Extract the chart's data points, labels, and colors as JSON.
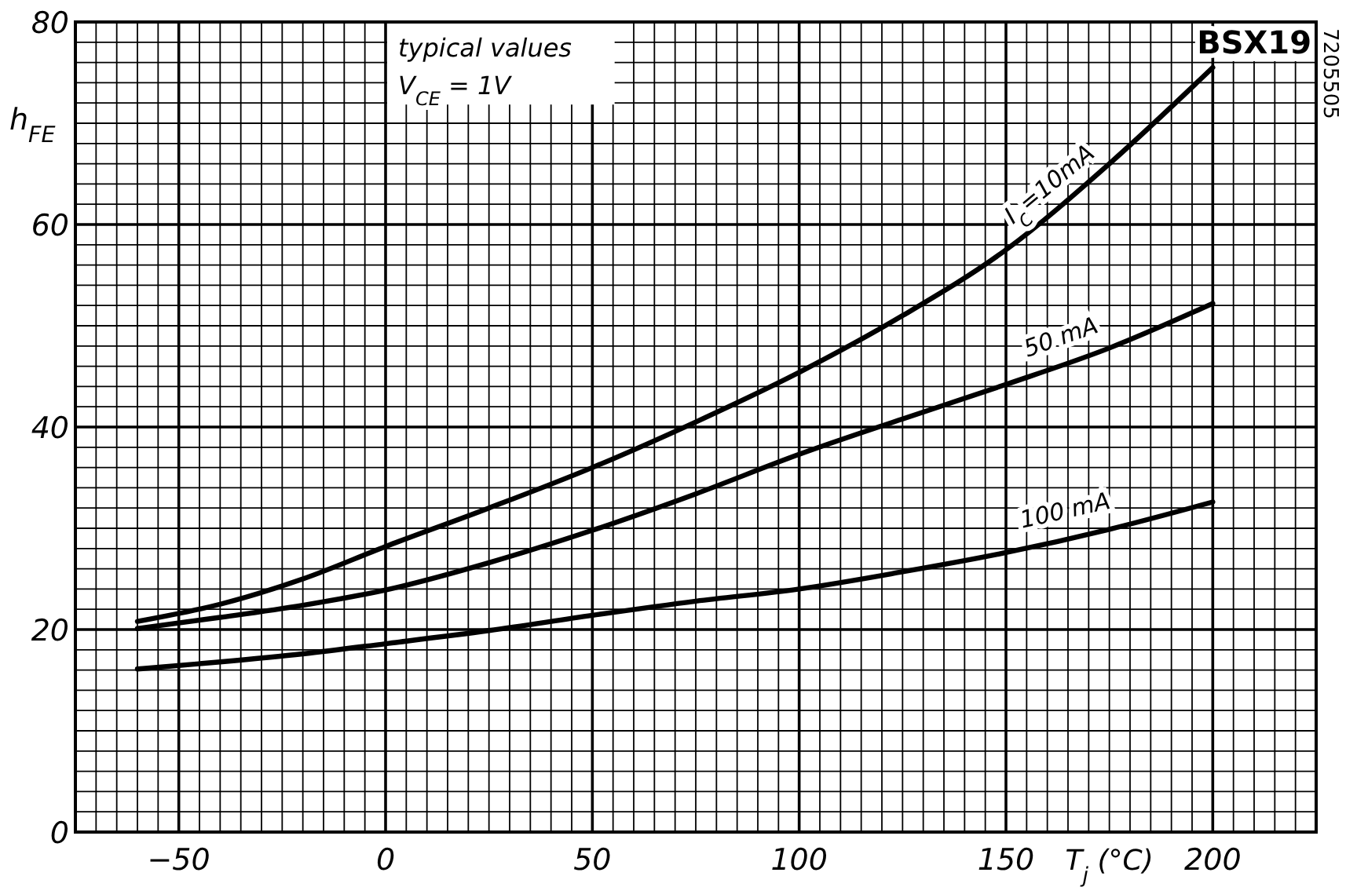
{
  "chart_data": {
    "type": "line",
    "title": "BSX19",
    "xlabel": "T$_{j}$ (°C)",
    "ylabel": "h$_{FE}$",
    "annotations": [
      "typical values",
      "V$_{CE}$ = 1V",
      "7205505"
    ],
    "x": [
      -60,
      -40,
      -20,
      0,
      25,
      50,
      75,
      100,
      125,
      150,
      175,
      200
    ],
    "series": [
      {
        "name": "I$_{C}$=10mA",
        "color": "#000000",
        "values": [
          20.8,
          22.5,
          25,
          28.2,
          32,
          36,
          40.5,
          45.4,
          51,
          57.5,
          66,
          75.5
        ]
      },
      {
        "name": "50 mA",
        "color": "#000000",
        "values": [
          20.1,
          21.2,
          22.4,
          23.9,
          26.6,
          29.8,
          33.4,
          37.3,
          40.8,
          44.2,
          47.8,
          52.2
        ]
      },
      {
        "name": "100 mA",
        "color": "#000000",
        "values": [
          16.1,
          16.8,
          17.6,
          18.6,
          19.9,
          21.4,
          22.8,
          24.0,
          25.7,
          27.6,
          29.9,
          32.6
        ]
      }
    ],
    "xlim": [
      -75,
      225
    ],
    "ylim": [
      0,
      80
    ],
    "xticks": [
      {
        "value": -75,
        "label": null
      },
      {
        "value": -70,
        "label": null
      },
      {
        "value": -65,
        "label": null
      },
      {
        "value": -60,
        "label": null
      },
      {
        "value": -55,
        "label": null
      },
      {
        "value": -50,
        "label": "−50"
      },
      {
        "value": -45,
        "label": null
      },
      {
        "value": -40,
        "label": null
      },
      {
        "value": -35,
        "label": null
      },
      {
        "value": -30,
        "label": null
      },
      {
        "value": -25,
        "label": null
      },
      {
        "value": -20,
        "label": null
      },
      {
        "value": -15,
        "label": null
      },
      {
        "value": -10,
        "label": null
      },
      {
        "value": -5,
        "label": null
      },
      0,
      {
        "value": 5,
        "label": null
      },
      {
        "value": 10,
        "label": null
      },
      {
        "value": 15,
        "label": null
      },
      {
        "value": 20,
        "label": null
      },
      {
        "value": 25,
        "label": null
      },
      {
        "value": 30,
        "label": null
      },
      {
        "value": 35,
        "label": null
      },
      {
        "value": 40,
        "label": null
      },
      {
        "value": 45,
        "label": null
      },
      50,
      {
        "value": 55,
        "label": null
      },
      {
        "value": 60,
        "label": null
      },
      {
        "value": 65,
        "label": null
      },
      {
        "value": 70,
        "label": null
      },
      {
        "value": 75,
        "label": null
      },
      {
        "value": 80,
        "label": null
      },
      {
        "value": 85,
        "label": null
      },
      {
        "value": 90,
        "label": null
      },
      {
        "value": 95,
        "label": null
      },
      100,
      {
        "value": 105,
        "label": null
      },
      {
        "value": 110,
        "label": null
      },
      {
        "value": 115,
        "label": null
      },
      {
        "value": 120,
        "label": null
      },
      {
        "value": 125,
        "label": null
      },
      {
        "value": 130,
        "label": null
      },
      {
        "value": 135,
        "label": null
      },
      {
        "value": 140,
        "label": null
      },
      {
        "value": 145,
        "label": null
      },
      150,
      {
        "value": 155,
        "label": null
      },
      {
        "value": 160,
        "label": null
      },
      {
        "value": 165,
        "label": null
      },
      {
        "value": 170,
        "label": null
      },
      {
        "value": 175,
        "label": null
      },
      {
        "value": 180,
        "label": null
      },
      {
        "value": 185,
        "label": null
      },
      {
        "value": 190,
        "label": null
      },
      {
        "value": 195,
        "label": null
      },
      200,
      {
        "value": 205,
        "label": null
      },
      {
        "value": 210,
        "label": null
      },
      {
        "value": 215,
        "label": null
      },
      {
        "value": 220,
        "label": null
      },
      {
        "value": 225,
        "label": null
      }
    ],
    "yticks": [
      0,
      {
        "value": 2,
        "label": null
      },
      {
        "value": 4,
        "label": null
      },
      {
        "value": 6,
        "label": null
      },
      {
        "value": 8,
        "label": null
      },
      {
        "value": 10,
        "label": null
      },
      {
        "value": 12,
        "label": null
      },
      {
        "value": 14,
        "label": null
      },
      {
        "value": 16,
        "label": null
      },
      {
        "value": 18,
        "label": null
      },
      20,
      {
        "value": 22,
        "label": null
      },
      {
        "value": 24,
        "label": null
      },
      {
        "value": 26,
        "label": null
      },
      {
        "value": 28,
        "label": null
      },
      {
        "value": 30,
        "label": null
      },
      {
        "value": 32,
        "label": null
      },
      {
        "value": 34,
        "label": null
      },
      {
        "value": 36,
        "label": null
      },
      {
        "value": 38,
        "label": null
      },
      40,
      {
        "value": 42,
        "label": null
      },
      {
        "value": 44,
        "label": null
      },
      {
        "value": 46,
        "label": null
      },
      {
        "value": 48,
        "label": null
      },
      {
        "value": 50,
        "label": null
      },
      {
        "value": 52,
        "label": null
      },
      {
        "value": 54,
        "label": null
      },
      {
        "value": 56,
        "label": null
      },
      {
        "value": 58,
        "label": null
      },
      60,
      {
        "value": 62,
        "label": null
      },
      {
        "value": 64,
        "label": null
      },
      {
        "value": 66,
        "label": null
      },
      {
        "value": 68,
        "label": null
      },
      {
        "value": 70,
        "label": null
      },
      {
        "value": 72,
        "label": null
      },
      {
        "value": 74,
        "label": null
      },
      {
        "value": 76,
        "label": null
      },
      {
        "value": 78,
        "label": null
      },
      80
    ],
    "grid": true,
    "line_style": "solid",
    "marker": "none"
  }
}
